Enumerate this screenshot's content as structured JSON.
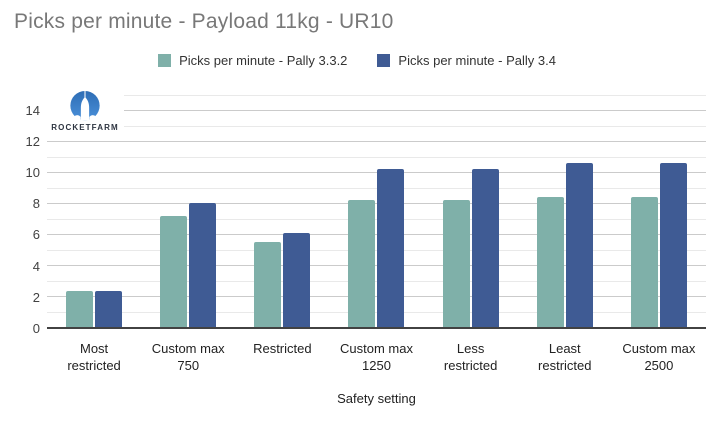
{
  "page": {
    "title": "Picks per minute - Payload 11kg - UR10"
  },
  "logo": {
    "text": "ROCKETFARM"
  },
  "chart_data": {
    "type": "bar",
    "title": "Picks per minute - Payload 11kg - UR10",
    "xlabel": "Safety setting",
    "ylabel": "",
    "ylim": [
      0,
      15
    ],
    "yticks": [
      0,
      2,
      4,
      6,
      8,
      10,
      12,
      14
    ],
    "minor_gridline_step": 1,
    "grid": "horizontal",
    "legend_position": "top-center",
    "categories": [
      "Most restricted",
      "Custom max 750",
      "Restricted",
      "Custom max 1250",
      "Less restricted",
      "Least restricted",
      "Custom max 2500"
    ],
    "category_label_lines": [
      [
        "Most",
        "restricted"
      ],
      [
        "Custom max",
        "750"
      ],
      [
        "Restricted"
      ],
      [
        "Custom max",
        "1250"
      ],
      [
        "Less",
        "restricted"
      ],
      [
        "Least",
        "restricted"
      ],
      [
        "Custom max",
        "2500"
      ]
    ],
    "series": [
      {
        "name": "Picks per minute - Pally 3.3.2",
        "color": "#7FB0A9",
        "values": [
          2.3,
          7.2,
          5.5,
          8.2,
          8.2,
          8.4,
          8.4
        ]
      },
      {
        "name": "Picks per minute - Pally 3.4",
        "color": "#3F5B94",
        "values": [
          2.3,
          8.0,
          6.1,
          10.2,
          10.2,
          10.6,
          10.6
        ]
      }
    ]
  },
  "colors": {
    "series_1": "#7FB0A9",
    "series_2": "#3F5B94",
    "title_text": "#787878",
    "axis_text": "#424242",
    "grid_major": "#cbcbcb",
    "grid_minor": "#e9e9e9",
    "axis_line": "#424242",
    "logo_blue": "#3178be"
  }
}
